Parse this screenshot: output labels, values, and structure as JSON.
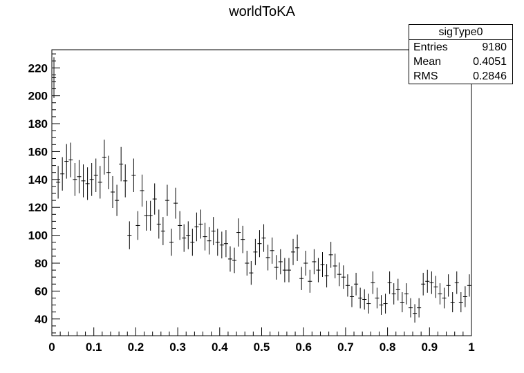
{
  "chart_data": {
    "type": "scatter",
    "title": "worldToKA",
    "xlim": [
      0,
      1
    ],
    "ylim": [
      28,
      233
    ],
    "x_ticks": [
      "0",
      "0.1",
      "0.2",
      "0.3",
      "0.4",
      "0.5",
      "0.6",
      "0.7",
      "0.8",
      "0.9",
      "1"
    ],
    "y_ticks": [
      40,
      60,
      80,
      100,
      120,
      140,
      160,
      180,
      200,
      220
    ],
    "bin_width": 0.01,
    "stats": {
      "name": "sigType0",
      "rows": [
        {
          "label": "Entries",
          "value": "9180"
        },
        {
          "label": "Mean",
          "value": "0.4051"
        },
        {
          "label": "RMS",
          "value": "0.2846"
        }
      ]
    },
    "series": [
      {
        "x": [
          0.005,
          0.015,
          0.025,
          0.035,
          0.045,
          0.055,
          0.065,
          0.075,
          0.085,
          0.095,
          0.105,
          0.115,
          0.125,
          0.135,
          0.145,
          0.155,
          0.165,
          0.175,
          0.185,
          0.195,
          0.205,
          0.215,
          0.225,
          0.235,
          0.245,
          0.255,
          0.265,
          0.275,
          0.285,
          0.295,
          0.305,
          0.315,
          0.325,
          0.335,
          0.345,
          0.355,
          0.365,
          0.375,
          0.385,
          0.395,
          0.405,
          0.415,
          0.425,
          0.435,
          0.445,
          0.455,
          0.465,
          0.475,
          0.485,
          0.495,
          0.505,
          0.515,
          0.525,
          0.535,
          0.545,
          0.555,
          0.565,
          0.575,
          0.585,
          0.595,
          0.605,
          0.615,
          0.625,
          0.635,
          0.645,
          0.655,
          0.665,
          0.675,
          0.685,
          0.695,
          0.705,
          0.715,
          0.725,
          0.735,
          0.745,
          0.755,
          0.765,
          0.775,
          0.785,
          0.795,
          0.805,
          0.815,
          0.825,
          0.835,
          0.845,
          0.855,
          0.865,
          0.875,
          0.885,
          0.895,
          0.905,
          0.915,
          0.925,
          0.935,
          0.945,
          0.955,
          0.965,
          0.975,
          0.985,
          0.995
        ],
        "y": [
          213,
          138,
          144,
          153,
          154,
          140,
          142,
          139,
          137,
          140,
          143,
          138,
          156,
          145,
          131,
          125,
          151,
          139,
          100,
          143,
          107,
          132,
          114,
          114,
          126,
          108,
          103,
          125,
          95,
          123,
          107,
          98,
          100,
          95,
          106,
          108,
          99,
          96,
          103,
          95,
          93,
          94,
          83,
          82,
          102,
          97,
          80,
          73,
          88,
          94,
          98,
          84,
          89,
          77,
          81,
          75,
          75,
          88,
          91,
          69,
          80,
          67,
          81,
          75,
          79,
          71,
          86,
          78,
          72,
          70,
          64,
          56,
          65,
          55,
          54,
          51,
          66,
          55,
          50,
          51,
          66,
          58,
          61,
          52,
          58,
          48,
          44,
          48,
          65,
          67,
          66,
          63,
          58,
          55,
          64,
          52,
          66,
          52,
          56,
          64
        ],
        "yerr": [
          14.6,
          11.7,
          12.0,
          12.4,
          12.4,
          11.8,
          11.9,
          11.8,
          11.7,
          11.8,
          12.0,
          11.7,
          12.5,
          12.0,
          11.4,
          11.2,
          12.3,
          11.8,
          10.0,
          12.0,
          10.3,
          11.5,
          10.7,
          10.7,
          11.2,
          10.4,
          10.1,
          11.2,
          9.7,
          11.1,
          10.3,
          9.9,
          10.0,
          9.7,
          10.3,
          10.4,
          9.9,
          9.8,
          10.1,
          9.7,
          9.6,
          9.7,
          9.1,
          9.1,
          10.1,
          9.8,
          8.9,
          8.5,
          9.4,
          9.7,
          9.9,
          9.2,
          9.4,
          8.8,
          9.0,
          8.7,
          8.7,
          9.4,
          9.5,
          8.3,
          8.9,
          8.2,
          9.0,
          8.7,
          8.9,
          8.4,
          9.3,
          8.8,
          8.5,
          8.4,
          8.0,
          7.5,
          8.1,
          7.4,
          7.3,
          7.1,
          8.1,
          7.4,
          7.1,
          7.1,
          8.1,
          7.6,
          7.8,
          7.2,
          7.6,
          6.9,
          6.6,
          6.9,
          8.1,
          8.2,
          8.1,
          7.9,
          7.6,
          7.4,
          8.0,
          7.2,
          8.1,
          7.2,
          7.5,
          8.0
        ]
      }
    ]
  }
}
